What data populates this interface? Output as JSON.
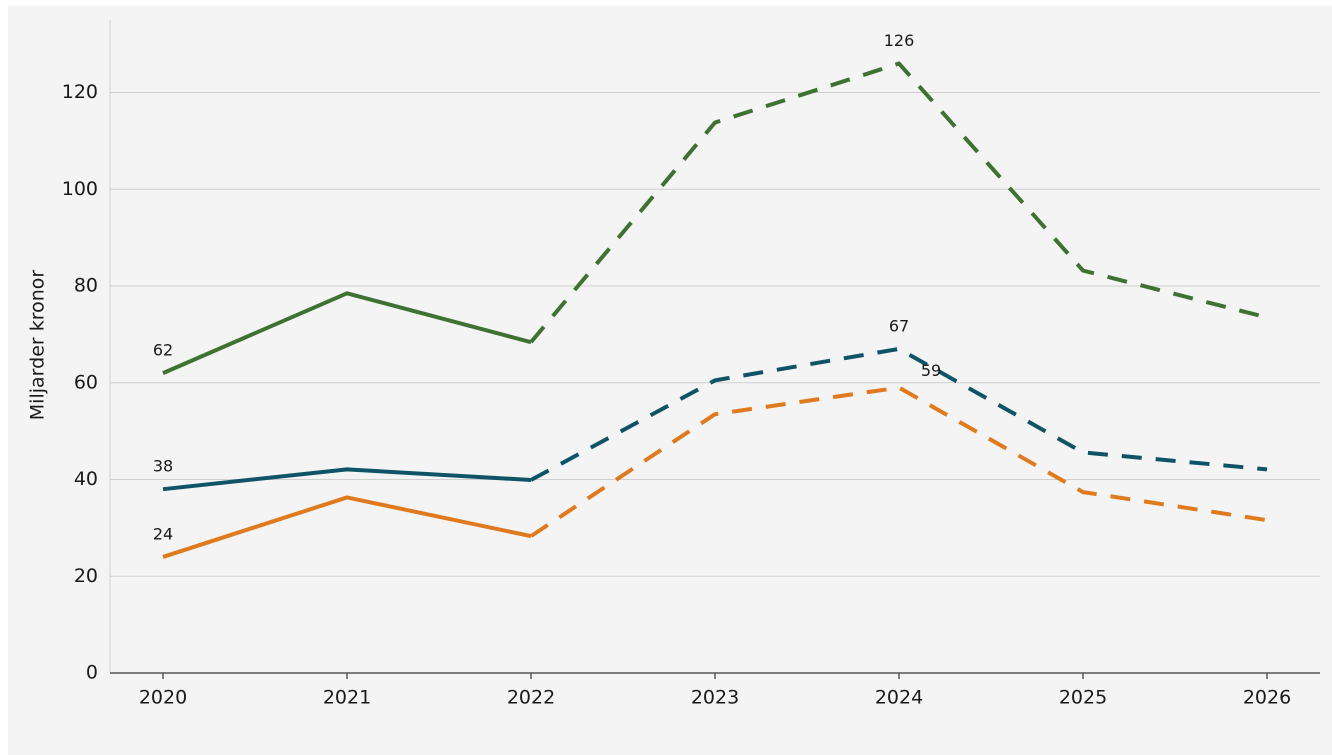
{
  "chart_data": {
    "type": "line",
    "y_label": "Miljarder kronor",
    "categories": [
      "2020",
      "2021",
      "2022",
      "2023",
      "2024",
      "2025",
      "2026"
    ],
    "series": [
      {
        "color": "#3f7232",
        "values": [
          62,
          78.5,
          68.4,
          113.8,
          126,
          83.2,
          73.5
        ]
      },
      {
        "color": "#0e5466",
        "values": [
          38,
          42.1,
          39.9,
          60.5,
          67,
          45.6,
          42.1
        ]
      },
      {
        "color": "#e07a1f",
        "values": [
          24,
          36.3,
          28.3,
          53.5,
          59,
          37.4,
          31.6
        ]
      }
    ],
    "dashed_from": "2022",
    "label_indices": [
      0,
      4
    ],
    "ylim": [
      0,
      135
    ],
    "yticks": [
      0,
      20,
      40,
      60,
      80,
      100,
      120
    ],
    "grid": true
  }
}
